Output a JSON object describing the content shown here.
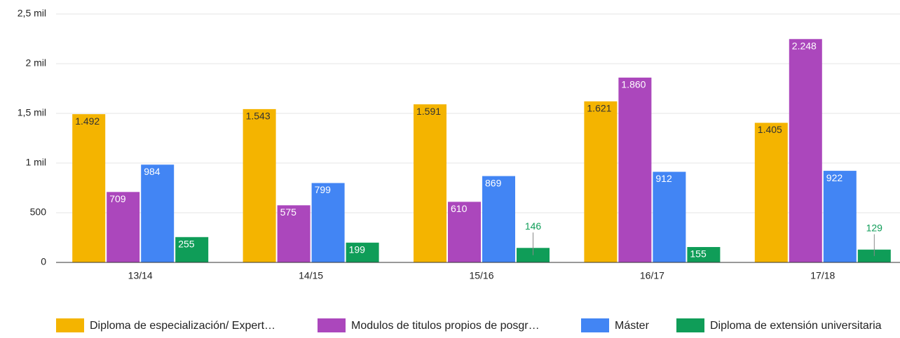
{
  "chart_data": {
    "type": "bar",
    "categories": [
      "13/14",
      "14/15",
      "15/16",
      "16/17",
      "17/18"
    ],
    "series": [
      {
        "name": "Diploma de especialización/ Expert…",
        "color": "#f4b400",
        "values": [
          1492,
          1543,
          1591,
          1621,
          1405
        ],
        "value_labels": [
          "1.492",
          "1.543",
          "1.591",
          "1.621",
          "1.405"
        ]
      },
      {
        "name": "Modulos de titulos propios de posgr…",
        "color": "#ab47bc",
        "values": [
          709,
          575,
          610,
          1860,
          2248
        ],
        "value_labels": [
          "709",
          "575",
          "610",
          "1.860",
          "2.248"
        ]
      },
      {
        "name": "Máster",
        "color": "#4285f4",
        "values": [
          984,
          799,
          869,
          912,
          922
        ],
        "value_labels": [
          "984",
          "799",
          "869",
          "912",
          "922"
        ]
      },
      {
        "name": "Diploma de extensión universitaria",
        "color": "#0f9d58",
        "values": [
          255,
          199,
          146,
          155,
          129
        ],
        "value_labels": [
          "255",
          "199",
          "146",
          "155",
          "129"
        ]
      }
    ],
    "ylim": [
      0,
      2500
    ],
    "yticks": [
      0,
      500,
      {
        "value": 1000,
        "label": "1 mil"
      },
      {
        "value": 1500,
        "label": "1,5 mil"
      },
      {
        "value": 2000,
        "label": "2 mil"
      },
      {
        "value": 2500,
        "label": "2,5 mil"
      }
    ],
    "grid": true,
    "legend": "bottom"
  }
}
